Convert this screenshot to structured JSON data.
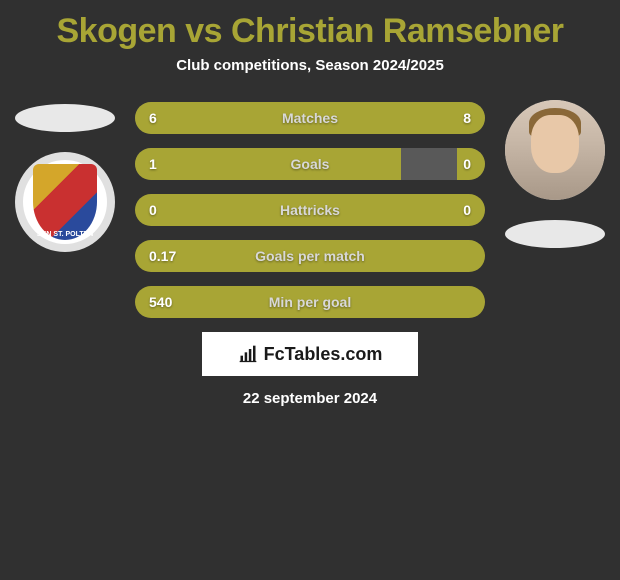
{
  "title": "Skogen vs Christian Ramsebner",
  "subtitle": "Club competitions, Season 2024/2025",
  "date": "22 september 2024",
  "logo_text": "FcTables.com",
  "colors": {
    "accent": "#a8a535",
    "bar_bg": "#595959",
    "page_bg": "#303030"
  },
  "left_club_name": "SKN ST. POLTEN",
  "stats": [
    {
      "label": "Matches",
      "left_value": "6",
      "right_value": "8",
      "left_pct": 43,
      "right_pct": 57
    },
    {
      "label": "Goals",
      "left_value": "1",
      "right_value": "0",
      "left_pct": 76,
      "right_pct": 8
    },
    {
      "label": "Hattricks",
      "left_value": "0",
      "right_value": "0",
      "left_pct": 0,
      "right_pct": 0,
      "full": true
    },
    {
      "label": "Goals per match",
      "left_value": "0.17",
      "right_value": "",
      "left_pct": 0,
      "right_pct": 0,
      "full": true
    },
    {
      "label": "Min per goal",
      "left_value": "540",
      "right_value": "",
      "left_pct": 0,
      "right_pct": 0,
      "full": true
    }
  ]
}
